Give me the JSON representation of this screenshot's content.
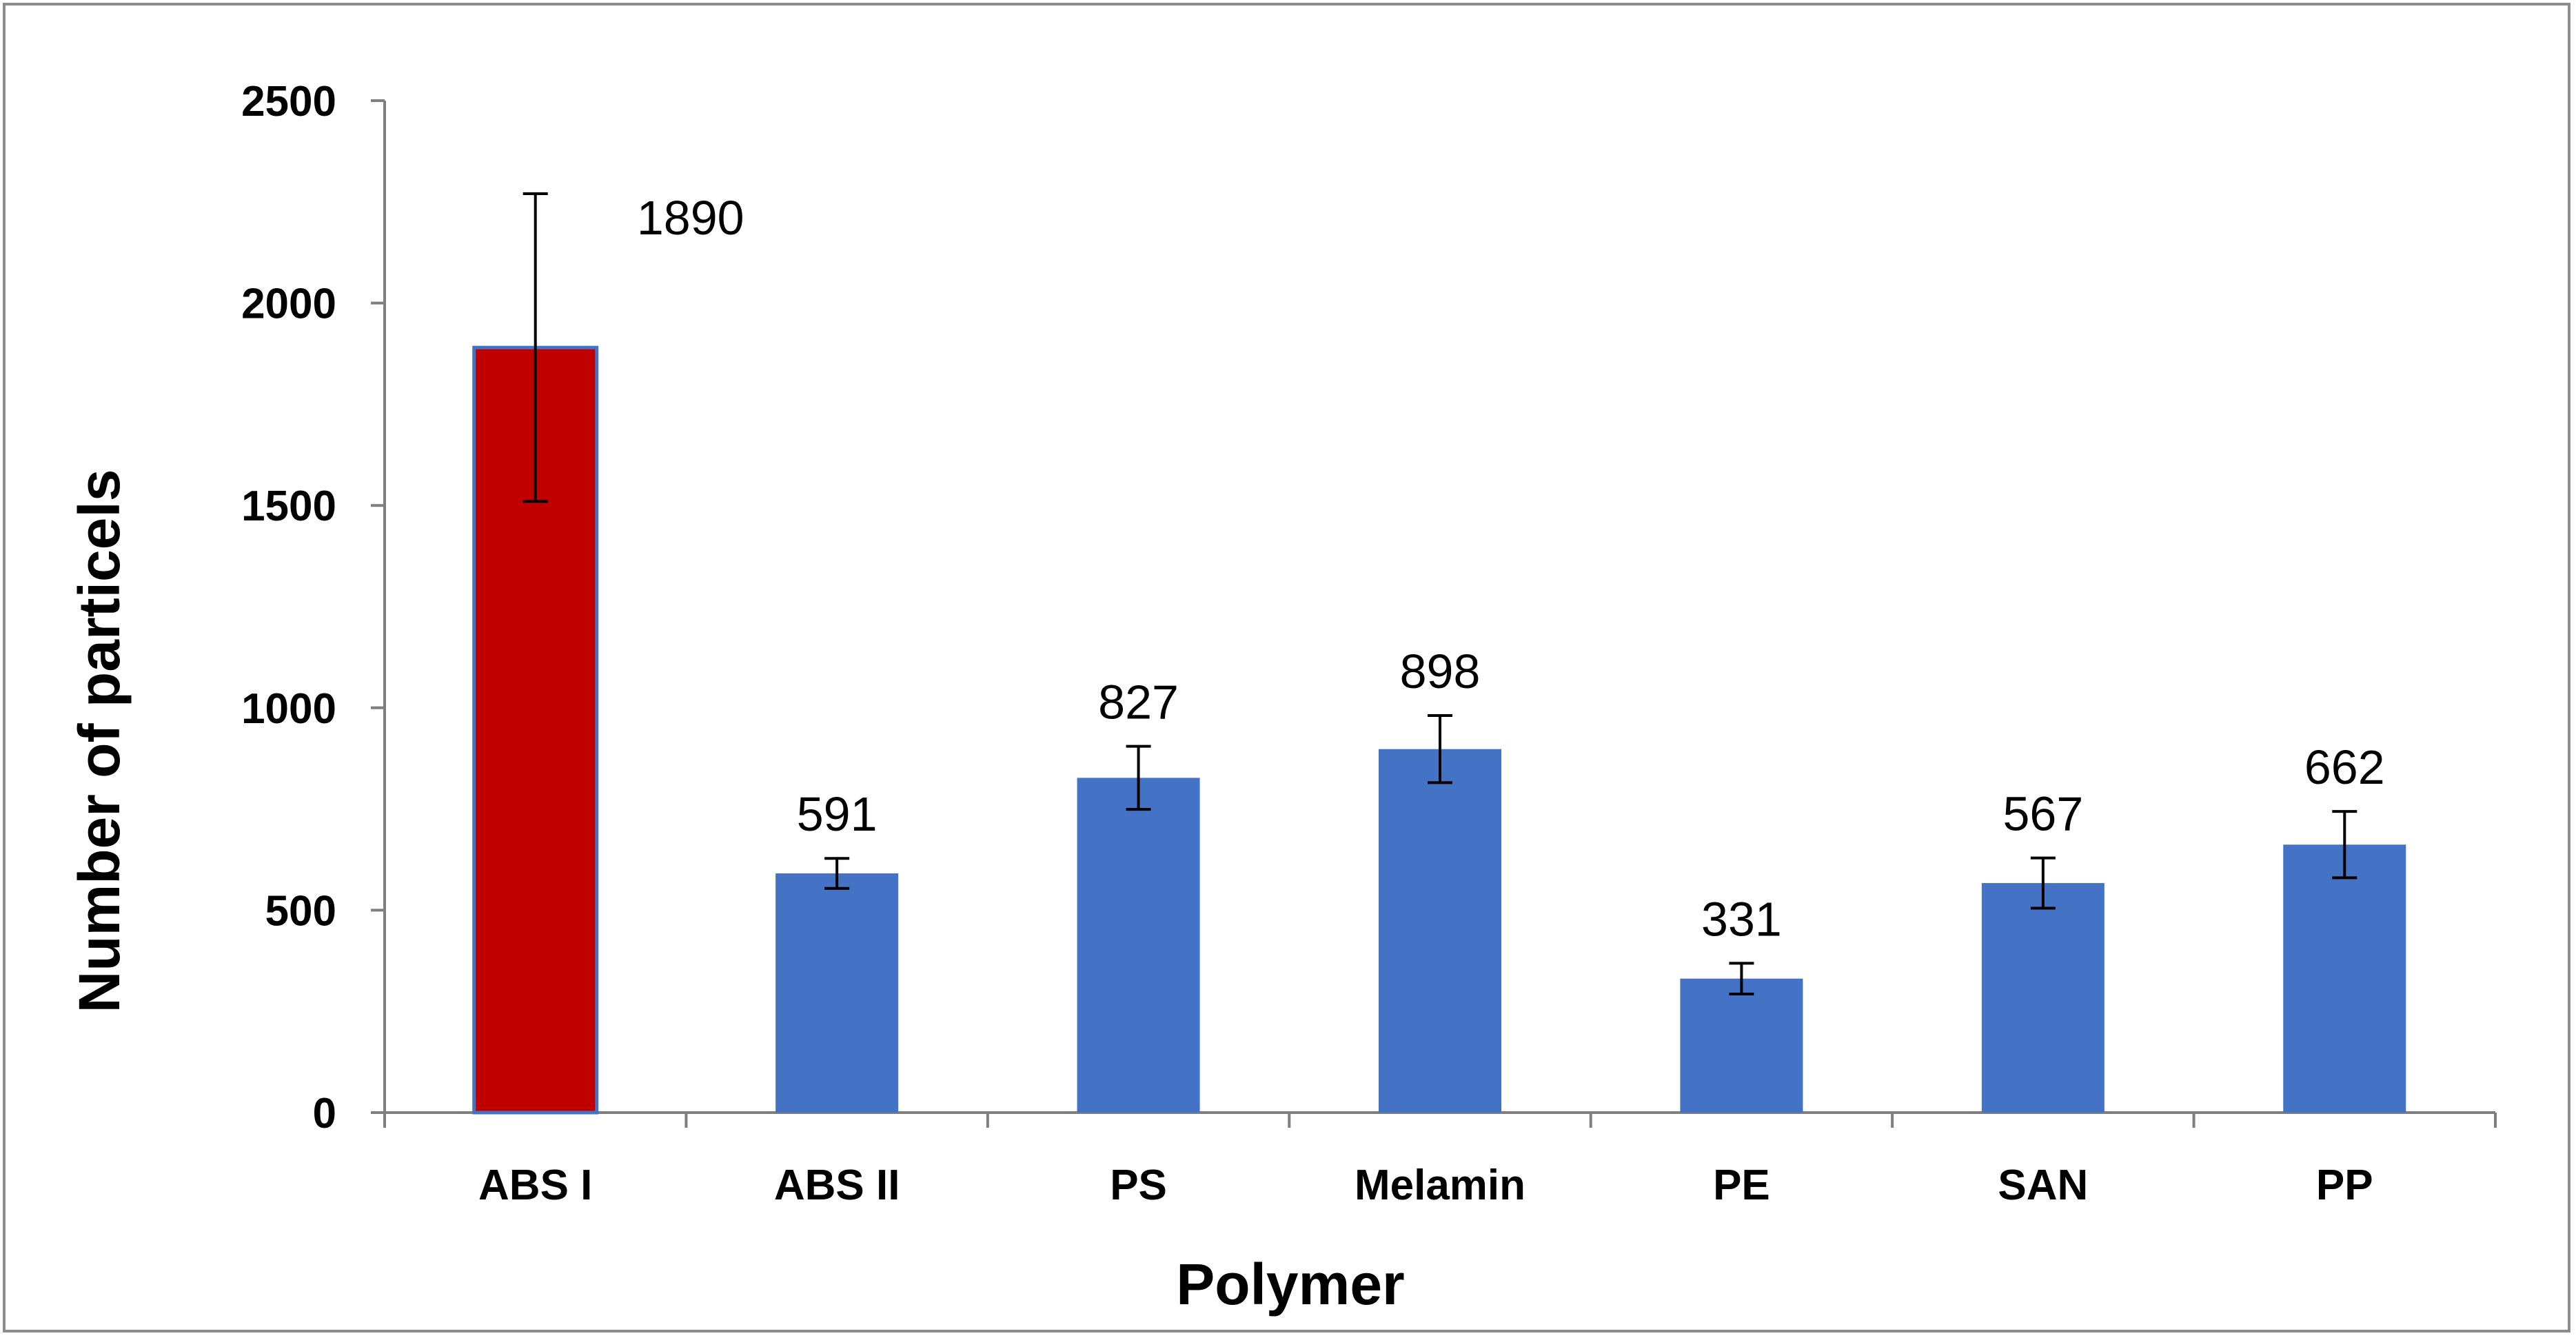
{
  "chart_data": {
    "type": "bar",
    "title": "",
    "xlabel": "Polymer",
    "ylabel": "Number of particels",
    "categories": [
      "ABS I",
      "ABS II",
      "PS",
      "Melamin",
      "PE",
      "SAN",
      "PP"
    ],
    "values": [
      1890,
      591,
      827,
      898,
      331,
      567,
      662
    ],
    "error": [
      380,
      37,
      78,
      83,
      38,
      62,
      82
    ],
    "data_labels": [
      "1890",
      "591",
      "827",
      "898",
      "331",
      "567",
      "662"
    ],
    "highlight_index": 0,
    "ylim": [
      0,
      2500
    ],
    "yticks": [
      0,
      500,
      1000,
      1500,
      2000,
      2500
    ],
    "ytick_labels": [
      "0",
      "500",
      "1000",
      "1500",
      "2000",
      "2500"
    ],
    "grid": false,
    "legend": "none",
    "colors": {
      "bar": "#4472c4",
      "highlight": "#c00000",
      "highlight_border": "#4472c4",
      "axis": "#7f7f7f",
      "error_bar": "#000000",
      "frame": "#8c8c8c"
    }
  }
}
